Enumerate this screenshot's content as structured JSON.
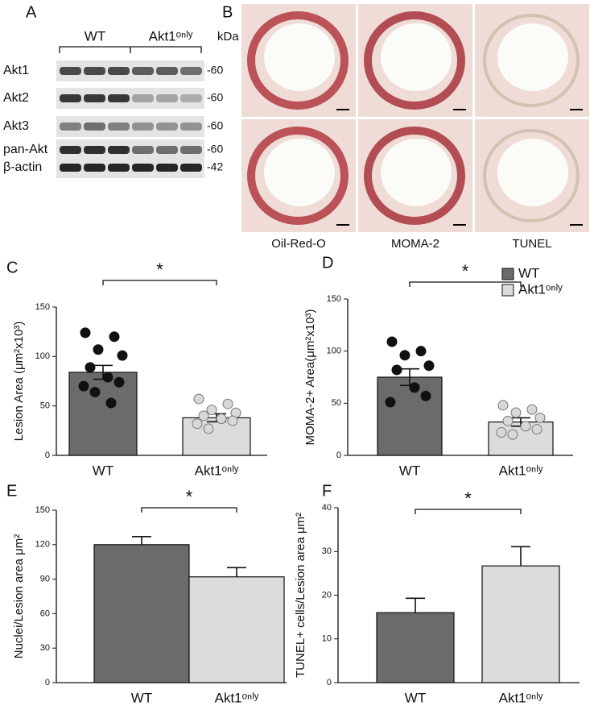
{
  "blot": {
    "label": "A",
    "groups": [
      "WT",
      "Akt1ᵒⁿˡʸ"
    ],
    "unit": "kDa",
    "rows": [
      {
        "name": "Akt1",
        "kda": "-60"
      },
      {
        "name": "Akt2",
        "kda": "-60"
      },
      {
        "name": "Akt3",
        "kda": "-60"
      },
      {
        "name": "pan-Akt",
        "kda": "-60"
      },
      {
        "name": "β-actin",
        "kda": "-42"
      }
    ]
  },
  "histology": {
    "label": "B",
    "columns": [
      "Oil-Red-O",
      "MOMA-2",
      "TUNEL"
    ]
  },
  "chart_data": [
    {
      "type": "bar",
      "label": "C",
      "y_label": "Lesion Area (μm²x10³)",
      "categories": [
        "WT",
        "Akt1ᵒⁿˡʸ"
      ],
      "values": [
        84,
        38
      ],
      "errors": [
        7,
        4
      ],
      "colors": [
        "#6b6b6b",
        "#dcdcdc"
      ],
      "points": [
        [
          124,
          120,
          107,
          101,
          89,
          79,
          74,
          70,
          64,
          53
        ],
        [
          57,
          52,
          46,
          43,
          40,
          37,
          35,
          32,
          27
        ]
      ],
      "annotation": "*",
      "ylim": [
        0,
        150
      ],
      "yticks": [
        0,
        50,
        100,
        150
      ],
      "legend": false
    },
    {
      "type": "bar",
      "label": "D",
      "y_label": "MOMA-2+ Area(μm²x10³)",
      "categories": [
        "WT",
        "Akt1ᵒⁿˡʸ"
      ],
      "values": [
        75,
        32
      ],
      "errors": [
        8,
        4
      ],
      "colors": [
        "#6b6b6b",
        "#dcdcdc"
      ],
      "points": [
        [
          109,
          100,
          96,
          86,
          82,
          65,
          57,
          51
        ],
        [
          48,
          44,
          41,
          36,
          33,
          28,
          25,
          22,
          20
        ]
      ],
      "annotation": "*",
      "ylim": [
        0,
        150
      ],
      "yticks": [
        0,
        50,
        100,
        150
      ],
      "legend": true
    },
    {
      "type": "bar",
      "label": "E",
      "y_label": "Nuclei/Lesion area μm²",
      "categories": [
        "WT",
        "Akt1ᵒⁿˡʸ"
      ],
      "values": [
        120,
        92
      ],
      "errors": [
        7,
        8
      ],
      "colors": [
        "#6b6b6b",
        "#dcdcdc"
      ],
      "annotation": "*",
      "ylim": [
        0,
        150
      ],
      "yticks": [
        0,
        30,
        60,
        90,
        120,
        150
      ],
      "legend": false
    },
    {
      "type": "bar",
      "label": "F",
      "y_label": "TUNEL+ cells/Lesion area μm²",
      "categories": [
        "WT",
        "Akt1ᵒⁿˡʸ"
      ],
      "values": [
        16,
        26.7
      ],
      "errors": [
        3.3,
        4.4
      ],
      "colors": [
        "#6b6b6b",
        "#dcdcdc"
      ],
      "annotation": "*",
      "ylim": [
        0,
        40
      ],
      "yticks": [
        0,
        10,
        20,
        30,
        40
      ],
      "legend": false
    }
  ]
}
